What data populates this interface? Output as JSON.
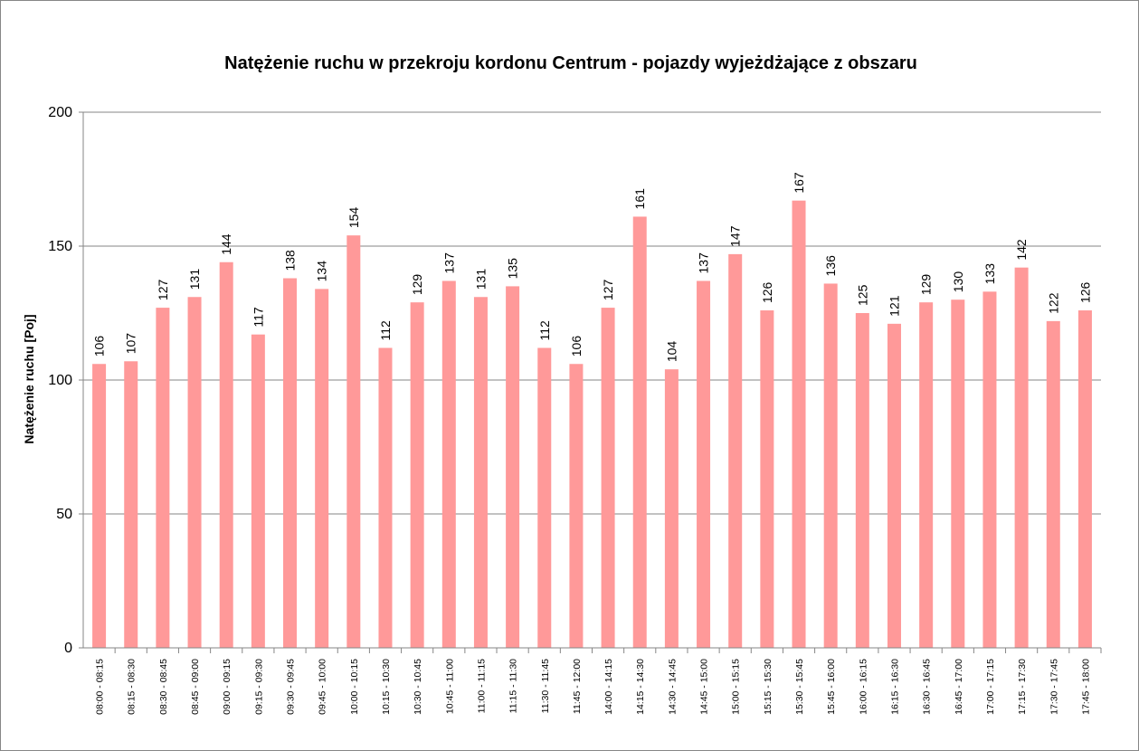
{
  "chart_data": {
    "type": "bar",
    "title": "Natężenie ruchu w przekroju kordonu Centrum - pojazdy wyjeżdżające z obszaru",
    "ylabel": "Natężenie ruchu [Poj]",
    "xlabel": "",
    "ylim": [
      0,
      200
    ],
    "yticks": [
      "0",
      "50",
      "100",
      "150",
      "200"
    ],
    "grid": true,
    "bar_color": "#ff9999",
    "categories": [
      "08:00 - 08:15",
      "08:15 - 08:30",
      "08:30 - 08:45",
      "08:45 - 09:00",
      "09:00 - 09:15",
      "09:15 - 09:30",
      "09:30 - 09:45",
      "09:45 - 10:00",
      "10:00 - 10:15",
      "10:15 - 10:30",
      "10:30 - 10:45",
      "10:45 - 11:00",
      "11:00 - 11:15",
      "11:15 - 11:30",
      "11:30 - 11:45",
      "11:45 - 12:00",
      "14:00 - 14:15",
      "14:15 - 14:30",
      "14:30 - 14:45",
      "14:45 - 15:00",
      "15:00 - 15:15",
      "15:15 - 15:30",
      "15:30 - 15:45",
      "15:45 - 16:00",
      "16:00 - 16:15",
      "16:15 - 16:30",
      "16:30 - 16:45",
      "16:45 - 17:00",
      "17:00 - 17:15",
      "17:15 - 17:30",
      "17:30 - 17:45",
      "17:45 - 18:00"
    ],
    "values": [
      106,
      107,
      127,
      131,
      144,
      117,
      138,
      134,
      154,
      112,
      129,
      137,
      131,
      135,
      112,
      106,
      127,
      161,
      104,
      137,
      147,
      126,
      167,
      136,
      125,
      121,
      129,
      130,
      133,
      142,
      122,
      126
    ]
  }
}
